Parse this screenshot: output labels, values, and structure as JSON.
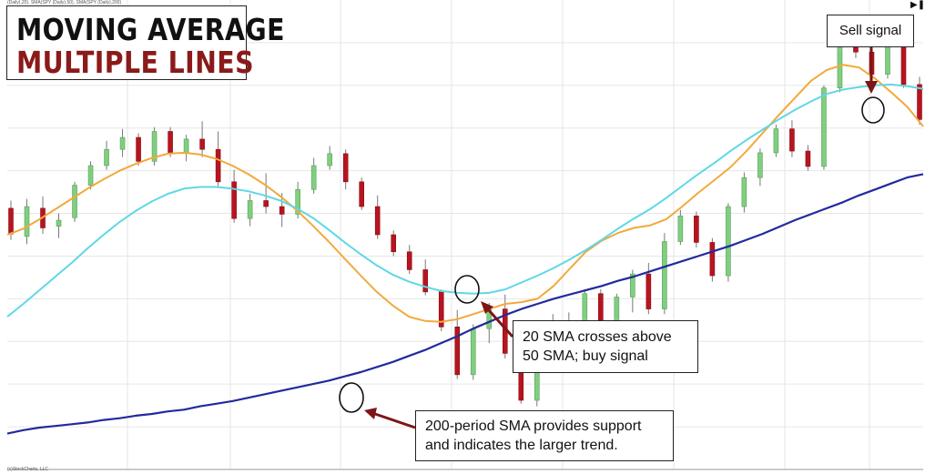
{
  "title": {
    "line1": "MOVING AVERAGE",
    "line2": "MULTIPLE LINES"
  },
  "header_text": "(Daily),20), SMA(SPY (Daily),50), SMA(SPY (Daily),200)",
  "footer_text": "(c)StockCharts, LLC",
  "corner_icon": "play-end-icon",
  "annotations": {
    "sell": "Sell signal",
    "buy_line1": "20 SMA crosses above",
    "buy_line2": "50 SMA; buy signal",
    "support_line1": "200-period SMA provides support",
    "support_line2": "and indicates the larger trend."
  },
  "colors": {
    "up": "#7fcf7f",
    "down": "#b8141f",
    "sma20": "#f2a93b",
    "sma50": "#5ed8e6",
    "sma200": "#222a9c",
    "grid": "#e6e6e6",
    "arrow": "#7d1616",
    "title_accent": "#8b1a1a"
  },
  "chart_data": {
    "type": "line",
    "series": [
      {
        "name": "SMA(SPY (Daily),20)",
        "color": "#f2a93b",
        "values": [
          67.5,
          68.2,
          69.3,
          70.5,
          71.7,
          72.9,
          74.0,
          75.0,
          75.8,
          76.5,
          77.0,
          77.1,
          76.9,
          76.4,
          75.6,
          74.6,
          73.4,
          72.0,
          70.4,
          68.6,
          66.7,
          64.7,
          62.7,
          60.8,
          59.2,
          57.9,
          57.4,
          57.3,
          57.6,
          58.2,
          58.8,
          59.4,
          59.6,
          60.0,
          61.5,
          63.5,
          65.5,
          66.8,
          67.7,
          68.3,
          68.6,
          69.3,
          70.8,
          72.4,
          73.9,
          75.4,
          77.3,
          79.4,
          81.5,
          83.5,
          85.5,
          86.8,
          87.4,
          87.1,
          85.8,
          84.2,
          82.5,
          80.2
        ]
      },
      {
        "name": "SMA(SPY (Daily),50)",
        "color": "#5ed8e6",
        "values": [
          57.9,
          59.4,
          61.0,
          62.6,
          64.2,
          65.9,
          67.5,
          69.0,
          70.3,
          71.4,
          72.3,
          72.9,
          73.1,
          73.1,
          72.9,
          72.6,
          72.1,
          71.5,
          70.6,
          69.5,
          68.1,
          66.6,
          65.2,
          63.9,
          62.8,
          62.0,
          61.4,
          60.9,
          60.7,
          60.6,
          60.7,
          61.1,
          61.9,
          62.7,
          63.6,
          64.6,
          65.7,
          66.9,
          68.2,
          69.4,
          70.5,
          71.8,
          73.2,
          74.6,
          75.9,
          77.3,
          78.6,
          79.8,
          81.0,
          82.1,
          83.1,
          84.0,
          84.5,
          84.8,
          85.0,
          85.1,
          84.9,
          84.6
        ]
      },
      {
        "name": "SMA(SPY (Daily),200)",
        "color": "#222a9c",
        "values": [
          44.2,
          44.6,
          44.9,
          45.1,
          45.3,
          45.5,
          45.8,
          46.0,
          46.3,
          46.5,
          46.8,
          47.0,
          47.4,
          47.7,
          48.0,
          48.4,
          48.8,
          49.2,
          49.6,
          50.0,
          50.4,
          50.9,
          51.4,
          52.0,
          52.6,
          53.3,
          54.0,
          54.8,
          55.6,
          56.5,
          57.3,
          58.1,
          58.8,
          59.4,
          60.0,
          60.5,
          61.0,
          61.5,
          62.1,
          62.6,
          63.2,
          63.8,
          64.4,
          65.0,
          65.6,
          66.2,
          66.9,
          67.6,
          68.4,
          69.2,
          69.9,
          70.6,
          71.3,
          72.1,
          72.8,
          73.5,
          74.2,
          74.6
        ]
      }
    ],
    "candles": [
      {
        "o": 70.6,
        "h": 71.5,
        "l": 66.9,
        "c": 67.6
      },
      {
        "o": 67.3,
        "h": 71.7,
        "l": 66.4,
        "c": 70.8
      },
      {
        "o": 70.6,
        "h": 72.0,
        "l": 67.6,
        "c": 68.3
      },
      {
        "o": 68.5,
        "h": 70.0,
        "l": 67.1,
        "c": 69.2
      },
      {
        "o": 69.5,
        "h": 73.7,
        "l": 69.0,
        "c": 73.3
      },
      {
        "o": 73.3,
        "h": 76.1,
        "l": 72.8,
        "c": 75.6
      },
      {
        "o": 75.6,
        "h": 78.5,
        "l": 75.1,
        "c": 77.5
      },
      {
        "o": 77.5,
        "h": 79.9,
        "l": 76.6,
        "c": 78.9
      },
      {
        "o": 78.9,
        "h": 79.4,
        "l": 75.6,
        "c": 76.1
      },
      {
        "o": 76.1,
        "h": 80.1,
        "l": 75.6,
        "c": 79.6
      },
      {
        "o": 79.6,
        "h": 80.1,
        "l": 76.6,
        "c": 77.1
      },
      {
        "o": 77.1,
        "h": 79.2,
        "l": 76.1,
        "c": 78.7
      },
      {
        "o": 78.7,
        "h": 80.8,
        "l": 76.6,
        "c": 77.5
      },
      {
        "o": 77.5,
        "h": 79.6,
        "l": 73.2,
        "c": 73.7
      },
      {
        "o": 73.7,
        "h": 75.1,
        "l": 68.9,
        "c": 69.4
      },
      {
        "o": 69.4,
        "h": 72.3,
        "l": 68.5,
        "c": 71.5
      },
      {
        "o": 71.5,
        "h": 74.7,
        "l": 70.0,
        "c": 70.8
      },
      {
        "o": 70.8,
        "h": 72.4,
        "l": 68.4,
        "c": 69.9
      },
      {
        "o": 69.9,
        "h": 73.7,
        "l": 69.4,
        "c": 72.8
      },
      {
        "o": 72.8,
        "h": 76.5,
        "l": 72.3,
        "c": 75.6
      },
      {
        "o": 75.6,
        "h": 77.9,
        "l": 75.1,
        "c": 77.0
      },
      {
        "o": 77.0,
        "h": 77.5,
        "l": 72.8,
        "c": 73.7
      },
      {
        "o": 73.7,
        "h": 74.2,
        "l": 70.4,
        "c": 70.8
      },
      {
        "o": 70.8,
        "h": 72.1,
        "l": 67.0,
        "c": 67.5
      },
      {
        "o": 67.5,
        "h": 68.0,
        "l": 65.0,
        "c": 65.5
      },
      {
        "o": 65.5,
        "h": 66.3,
        "l": 62.9,
        "c": 63.4
      },
      {
        "o": 63.4,
        "h": 64.6,
        "l": 60.4,
        "c": 60.8
      },
      {
        "o": 60.8,
        "h": 61.1,
        "l": 56.2,
        "c": 56.7
      },
      {
        "o": 56.7,
        "h": 58.7,
        "l": 50.6,
        "c": 51.1
      },
      {
        "o": 51.1,
        "h": 57.0,
        "l": 50.5,
        "c": 56.5
      },
      {
        "o": 56.5,
        "h": 59.5,
        "l": 54.8,
        "c": 58.8
      },
      {
        "o": 58.8,
        "h": 60.5,
        "l": 53.0,
        "c": 53.6
      },
      {
        "o": 53.6,
        "h": 54.4,
        "l": 47.7,
        "c": 48.1
      },
      {
        "o": 48.1,
        "h": 53.5,
        "l": 47.4,
        "c": 53.0
      },
      {
        "o": 53.0,
        "h": 58.2,
        "l": 52.0,
        "c": 57.4
      },
      {
        "o": 57.4,
        "h": 58.4,
        "l": 53.5,
        "c": 54.2
      },
      {
        "o": 54.2,
        "h": 61.1,
        "l": 53.7,
        "c": 60.6
      },
      {
        "o": 60.6,
        "h": 61.1,
        "l": 56.2,
        "c": 56.7
      },
      {
        "o": 56.7,
        "h": 60.6,
        "l": 56.2,
        "c": 60.2
      },
      {
        "o": 60.2,
        "h": 63.4,
        "l": 58.4,
        "c": 62.9
      },
      {
        "o": 62.9,
        "h": 64.2,
        "l": 58.2,
        "c": 58.8
      },
      {
        "o": 58.8,
        "h": 67.7,
        "l": 58.2,
        "c": 66.7
      },
      {
        "o": 66.7,
        "h": 70.4,
        "l": 66.3,
        "c": 69.7
      },
      {
        "o": 69.7,
        "h": 70.2,
        "l": 66.0,
        "c": 66.6
      },
      {
        "o": 66.6,
        "h": 67.1,
        "l": 62.0,
        "c": 62.7
      },
      {
        "o": 62.7,
        "h": 71.2,
        "l": 62.0,
        "c": 70.8
      },
      {
        "o": 70.8,
        "h": 74.8,
        "l": 70.1,
        "c": 74.2
      },
      {
        "o": 74.2,
        "h": 77.6,
        "l": 73.2,
        "c": 77.1
      },
      {
        "o": 77.1,
        "h": 80.4,
        "l": 76.6,
        "c": 79.9
      },
      {
        "o": 79.9,
        "h": 80.9,
        "l": 76.6,
        "c": 77.3
      },
      {
        "o": 77.3,
        "h": 78.0,
        "l": 75.0,
        "c": 75.5
      },
      {
        "o": 75.5,
        "h": 85.0,
        "l": 75.1,
        "c": 84.7
      },
      {
        "o": 84.7,
        "h": 92.7,
        "l": 84.2,
        "c": 92.3
      },
      {
        "o": 92.3,
        "h": 93.2,
        "l": 88.2,
        "c": 88.9
      },
      {
        "o": 88.9,
        "h": 89.4,
        "l": 85.6,
        "c": 86.3
      },
      {
        "o": 86.3,
        "h": 91.7,
        "l": 85.8,
        "c": 91.2
      },
      {
        "o": 91.2,
        "h": 91.5,
        "l": 84.7,
        "c": 85.1
      },
      {
        "o": 85.1,
        "h": 86.0,
        "l": 80.4,
        "c": 81.0
      }
    ],
    "xlabel": "",
    "ylabel": "",
    "ylim": [
      40,
      95
    ],
    "grid": true,
    "legend": "none"
  }
}
